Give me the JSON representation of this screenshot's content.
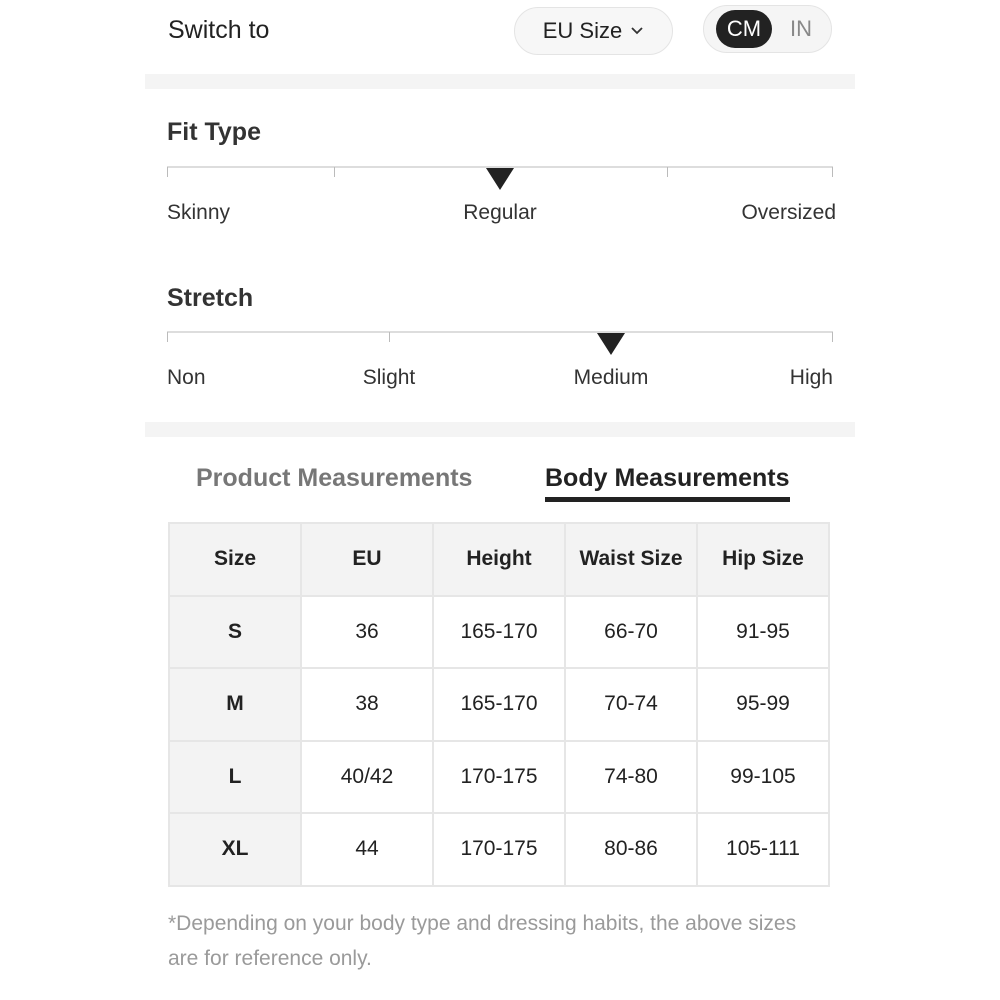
{
  "header": {
    "switch_label": "Switch to",
    "size_system": "EU Size",
    "units": [
      "CM",
      "IN"
    ],
    "active_unit": "CM"
  },
  "fit_type": {
    "title": "Fit Type",
    "labels": [
      "Skinny",
      "Regular",
      "Oversized"
    ],
    "selected": "Regular"
  },
  "stretch": {
    "title": "Stretch",
    "labels": [
      "Non",
      "Slight",
      "Medium",
      "High"
    ],
    "selected": "Medium"
  },
  "tabs": [
    {
      "label": "Product Measurements",
      "active": false
    },
    {
      "label": "Body Measurements",
      "active": true
    }
  ],
  "table": {
    "headers": [
      "Size",
      "EU",
      "Height",
      "Waist Size",
      "Hip Size"
    ],
    "rows": [
      [
        "S",
        "36",
        "165-170",
        "66-70",
        "91-95"
      ],
      [
        "M",
        "38",
        "165-170",
        "70-74",
        "95-99"
      ],
      [
        "L",
        "40/42",
        "170-175",
        "74-80",
        "99-105"
      ],
      [
        "XL",
        "44",
        "170-175",
        "80-86",
        "105-111"
      ]
    ]
  },
  "footnote": "*Depending on your body type and dressing habits, the above sizes are for reference only."
}
